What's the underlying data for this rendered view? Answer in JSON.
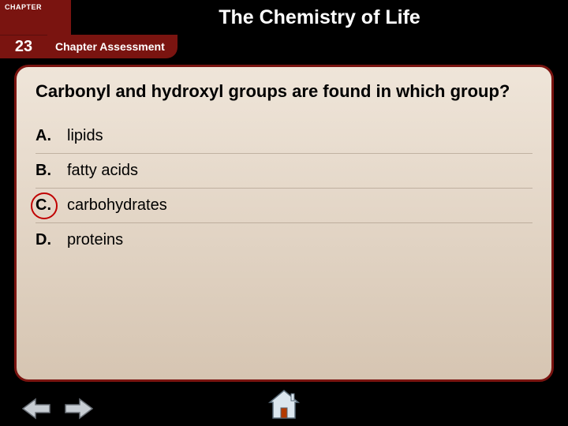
{
  "header": {
    "chapter_label": "CHAPTER",
    "chapter_number": "23",
    "title": "The Chemistry of Life",
    "tab_label": "Chapter Assessment"
  },
  "question": "Carbonyl and hydroxyl groups are found in which group?",
  "options": [
    {
      "letter": "A.",
      "text": "lipids",
      "circled": false
    },
    {
      "letter": "B.",
      "text": "fatty acids",
      "circled": false
    },
    {
      "letter": "C.",
      "text": "carbohydrates",
      "circled": true
    },
    {
      "letter": "D.",
      "text": "proteins",
      "circled": false
    }
  ],
  "colors": {
    "brand_red": "#7a1410",
    "panel_top": "#efe5d9",
    "panel_bottom": "#d6c5b2",
    "circle": "#c00000",
    "arrow_fill": "#c7cdd3",
    "arrow_stroke": "#6b7178",
    "home_fill": "#dbe6ee",
    "home_stroke": "#5a6b78",
    "home_door": "#b33a00"
  }
}
